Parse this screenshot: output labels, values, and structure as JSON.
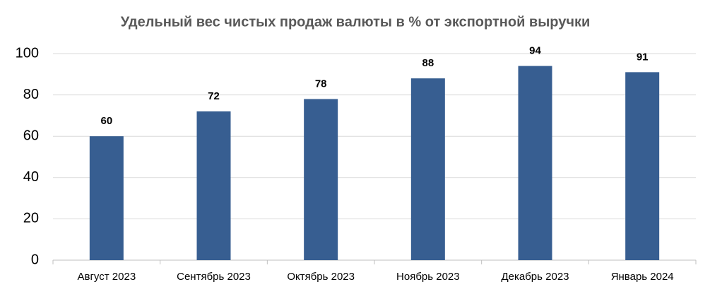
{
  "chart_data": {
    "type": "bar",
    "title": "Удельный вес чистых продаж валюты в % от экспортной выручки",
    "categories": [
      "Август 2023",
      "Сентябрь 2023",
      "Октябрь 2023",
      "Ноябрь 2023",
      "Декабрь 2023",
      "Январь 2024"
    ],
    "values": [
      60,
      72,
      78,
      88,
      94,
      91
    ],
    "color": "#375e91",
    "ylim": [
      0,
      100
    ],
    "yticks": [
      0,
      20,
      40,
      60,
      80,
      100
    ],
    "grid": true
  }
}
